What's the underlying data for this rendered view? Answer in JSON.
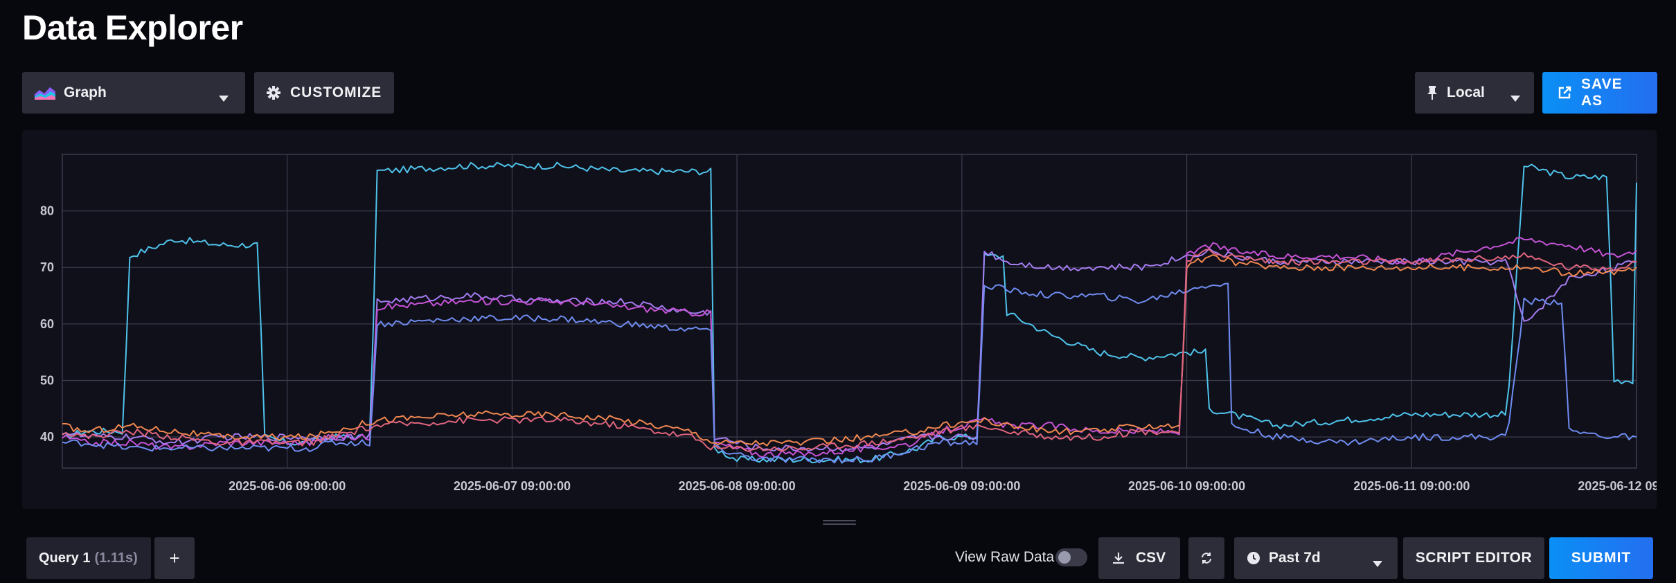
{
  "page": {
    "title": "Data Explorer"
  },
  "toolbar": {
    "graph_type": "Graph",
    "customize_label": "CUSTOMIZE",
    "timezone": "Local",
    "save_as_label": "SAVE AS"
  },
  "footer": {
    "query_tab_label": "Query 1",
    "query_tab_time": "(1.11s)",
    "add_query_label": "+",
    "view_raw_label": "View Raw Data",
    "view_raw_on": false,
    "csv_label": "CSV",
    "time_range": "Past 7d",
    "script_editor_label": "SCRIPT EDITOR",
    "submit_label": "SUBMIT"
  },
  "icons": {
    "graph": "area-chart-icon",
    "customize": "gear-icon",
    "timezone": "pin-icon",
    "save_as": "external-link-icon",
    "csv": "download-icon",
    "refresh": "refresh-icon",
    "time_range": "clock-icon",
    "caret": "caret-down-icon"
  },
  "chart_data": {
    "type": "line",
    "title": "",
    "xlabel": "",
    "ylabel": "",
    "x_range": [
      "2025-06-05 09:00:00",
      "2025-06-12 09:00:00"
    ],
    "ylim": [
      34.5,
      90
    ],
    "yticks": [
      40,
      50,
      60,
      70,
      80
    ],
    "xticks": [
      "2025-06-06 09:00:00",
      "2025-06-07 09:00:00",
      "2025-06-08 09:00:00",
      "2025-06-09 09:00:00",
      "2025-06-10 09:00:00",
      "2025-06-11 09:00:00",
      "2025-06-12 09:00:00"
    ],
    "grid": true,
    "legend": "none",
    "x_days": [
      0,
      0.1,
      0.3,
      0.5,
      0.7,
      0.9,
      1.0,
      1.1,
      1.2,
      1.4,
      1.8,
      2.2,
      2.5,
      2.8,
      2.9,
      3.0,
      3.1,
      3.3,
      3.6,
      3.8,
      3.9,
      4.1,
      4.2,
      4.4,
      4.6,
      4.8,
      5.0,
      5.1,
      5.2,
      5.4,
      5.7,
      6.0,
      6.5,
      6.7,
      6.9,
      7.0
    ],
    "series": [
      {
        "color": "#4fc3ea",
        "values": [
          40,
          41,
          72,
          75,
          74,
          40,
          39,
          39,
          40,
          87,
          88,
          88,
          87,
          87,
          38,
          36,
          36,
          36,
          36,
          38,
          40,
          72,
          62,
          58,
          55,
          54,
          55,
          45,
          44,
          42,
          43,
          44,
          88,
          86,
          50,
          85
        ]
      },
      {
        "color": "#a57cf0",
        "values": [
          41,
          40,
          40,
          39,
          40,
          40,
          40,
          40,
          40,
          64,
          65,
          64,
          64,
          62,
          40,
          39,
          38,
          38,
          38,
          40,
          40,
          73,
          71,
          70,
          70,
          70,
          72,
          73,
          72,
          71,
          71,
          71,
          60,
          68,
          70,
          71
        ]
      },
      {
        "color": "#c653d6",
        "values": [
          40,
          39,
          39,
          38,
          39,
          39,
          39,
          39,
          40,
          63,
          64,
          64,
          63,
          62,
          39,
          38,
          37,
          37,
          38,
          39,
          41,
          43,
          42,
          42,
          41,
          41,
          72,
          74,
          73,
          72,
          72,
          71,
          75,
          74,
          72,
          73
        ]
      },
      {
        "color": "#6f8cf0",
        "values": [
          39,
          39,
          38,
          38,
          38,
          38,
          38,
          38,
          39,
          60,
          61,
          61,
          60,
          59,
          38,
          37,
          36,
          36,
          36,
          38,
          39,
          67,
          66,
          65,
          65,
          64,
          66,
          67,
          42,
          40,
          39,
          40,
          64,
          41,
          40,
          40
        ]
      },
      {
        "color": "#f0874f",
        "values": [
          42,
          41,
          42,
          41,
          40,
          40,
          40,
          40,
          41,
          43,
          44,
          44,
          43,
          41,
          39,
          39,
          39,
          39,
          40,
          41,
          42,
          43,
          42,
          41,
          41,
          42,
          70,
          72,
          71,
          70,
          70,
          70,
          70,
          69,
          69,
          70
        ]
      },
      {
        "color": "#e0657e",
        "values": [
          41,
          40,
          41,
          40,
          39,
          39,
          39,
          39,
          40,
          42,
          43,
          43,
          42,
          40,
          38,
          38,
          38,
          38,
          39,
          40,
          41,
          42,
          41,
          40,
          40,
          41,
          71,
          73,
          72,
          71,
          71,
          71,
          72,
          70,
          70,
          71
        ]
      }
    ]
  }
}
